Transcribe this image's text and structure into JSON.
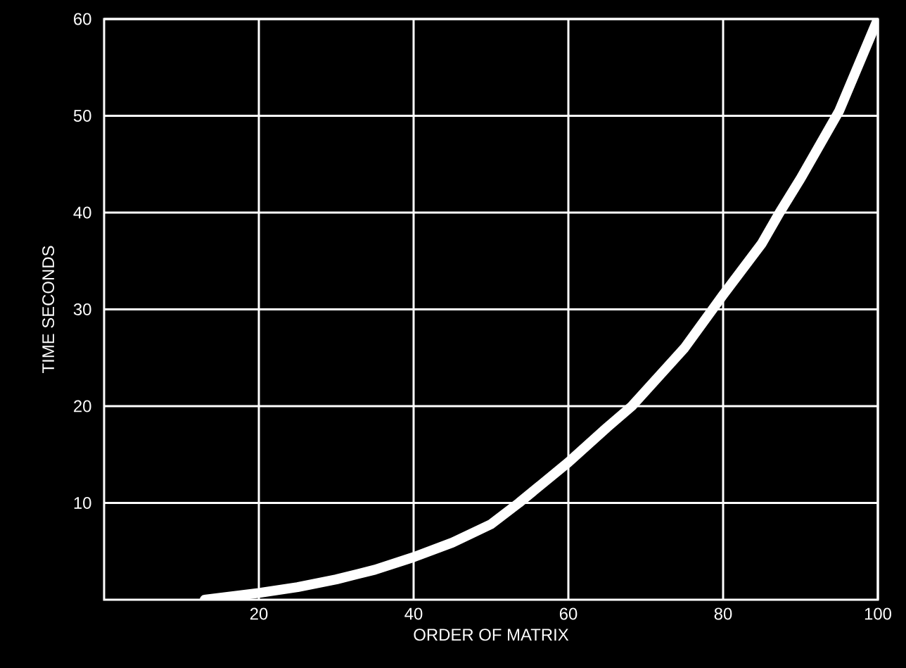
{
  "chart_data": {
    "type": "line",
    "xlabel": "ORDER OF MATRIX",
    "ylabel": "TIME SECONDS",
    "x": [
      13,
      15,
      20,
      25,
      30,
      35,
      40,
      45,
      50,
      53.6,
      60,
      65,
      68.2,
      75,
      80,
      85,
      87.3,
      90,
      95,
      100
    ],
    "series": [
      {
        "color": "#ffffff",
        "values": [
          0,
          0.2,
          0.7,
          1.3,
          2.1,
          3.1,
          4.4,
          5.9,
          7.8,
          10,
          14.2,
          17.8,
          20,
          26,
          31.5,
          36.8,
          40,
          43.5,
          50.5,
          60
        ]
      }
    ],
    "xlim": [
      0,
      100
    ],
    "ylim": [
      0,
      60
    ],
    "xticks": [
      20,
      40,
      60,
      80,
      100
    ],
    "yticks": [
      10,
      20,
      30,
      40,
      50,
      60
    ],
    "grid": true,
    "marker": "none",
    "line_style": "solid"
  }
}
